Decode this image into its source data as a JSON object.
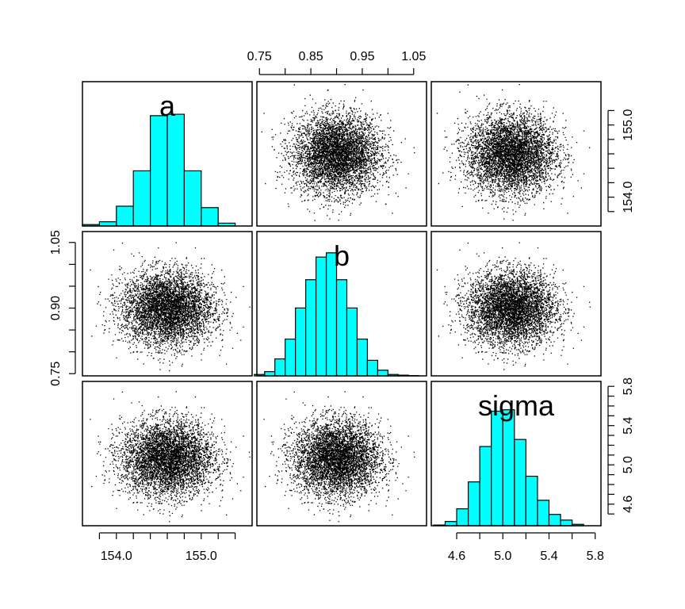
{
  "chart_data": {
    "type": "pairs",
    "variables": [
      {
        "name": "a",
        "label": "a",
        "range": [
          153.6,
          155.6
        ],
        "ticks": [
          "154.0",
          "155.0"
        ],
        "tick_values": [
          154.0,
          155.0
        ],
        "mean": 154.6,
        "sd": 0.27
      },
      {
        "name": "b",
        "label": "b",
        "range": [
          0.745,
          1.075
        ],
        "ticks": [
          "0.75",
          "0.85",
          "0.95",
          "1.05"
        ],
        "tick_values": [
          0.75,
          0.85,
          0.95,
          1.05
        ],
        "minor_ticks": [
          0.75,
          0.8,
          0.85,
          0.9,
          0.95,
          1.0,
          1.05
        ],
        "left_ticks": [
          "0.75",
          "0.90",
          "1.05"
        ],
        "left_tick_values": [
          0.75,
          0.9,
          1.05
        ],
        "mean": 0.9,
        "sd": 0.042
      },
      {
        "name": "sigma",
        "label": "sigma",
        "range": [
          4.38,
          5.85
        ],
        "ticks": [
          "4.6",
          "5.0",
          "5.4",
          "5.8"
        ],
        "tick_values": [
          4.6,
          5.0,
          5.4,
          5.8
        ],
        "mean": 5.07,
        "sd": 0.19
      }
    ],
    "histograms": [
      {
        "variable": "a",
        "breaks": [
          153.6,
          153.8,
          154.0,
          154.2,
          154.4,
          154.6,
          154.8,
          155.0,
          155.2,
          155.4
        ],
        "counts": [
          0.01,
          0.03,
          0.14,
          0.39,
          0.78,
          0.79,
          0.39,
          0.13,
          0.02
        ]
      },
      {
        "variable": "b",
        "breaks": [
          0.74,
          0.76,
          0.78,
          0.8,
          0.82,
          0.84,
          0.86,
          0.88,
          0.9,
          0.92,
          0.94,
          0.96,
          0.98,
          1.0,
          1.02,
          1.04,
          1.06
        ],
        "counts": [
          0.01,
          0.03,
          0.12,
          0.26,
          0.48,
          0.68,
          0.84,
          0.87,
          0.68,
          0.48,
          0.26,
          0.11,
          0.04,
          0.01,
          0.005,
          0.002
        ]
      },
      {
        "variable": "sigma",
        "breaks": [
          4.4,
          4.5,
          4.6,
          4.7,
          4.8,
          4.9,
          5.0,
          5.1,
          5.2,
          5.3,
          5.4,
          5.5,
          5.6,
          5.7
        ],
        "counts": [
          0.005,
          0.03,
          0.12,
          0.31,
          0.56,
          0.81,
          0.82,
          0.61,
          0.35,
          0.18,
          0.08,
          0.04,
          0.01
        ]
      }
    ],
    "scatter_points_per_panel": 5000,
    "colors": {
      "hist_fill": "#00FFFF",
      "hist_stroke": "#000000",
      "points": "#000000",
      "frame": "#000000"
    }
  }
}
